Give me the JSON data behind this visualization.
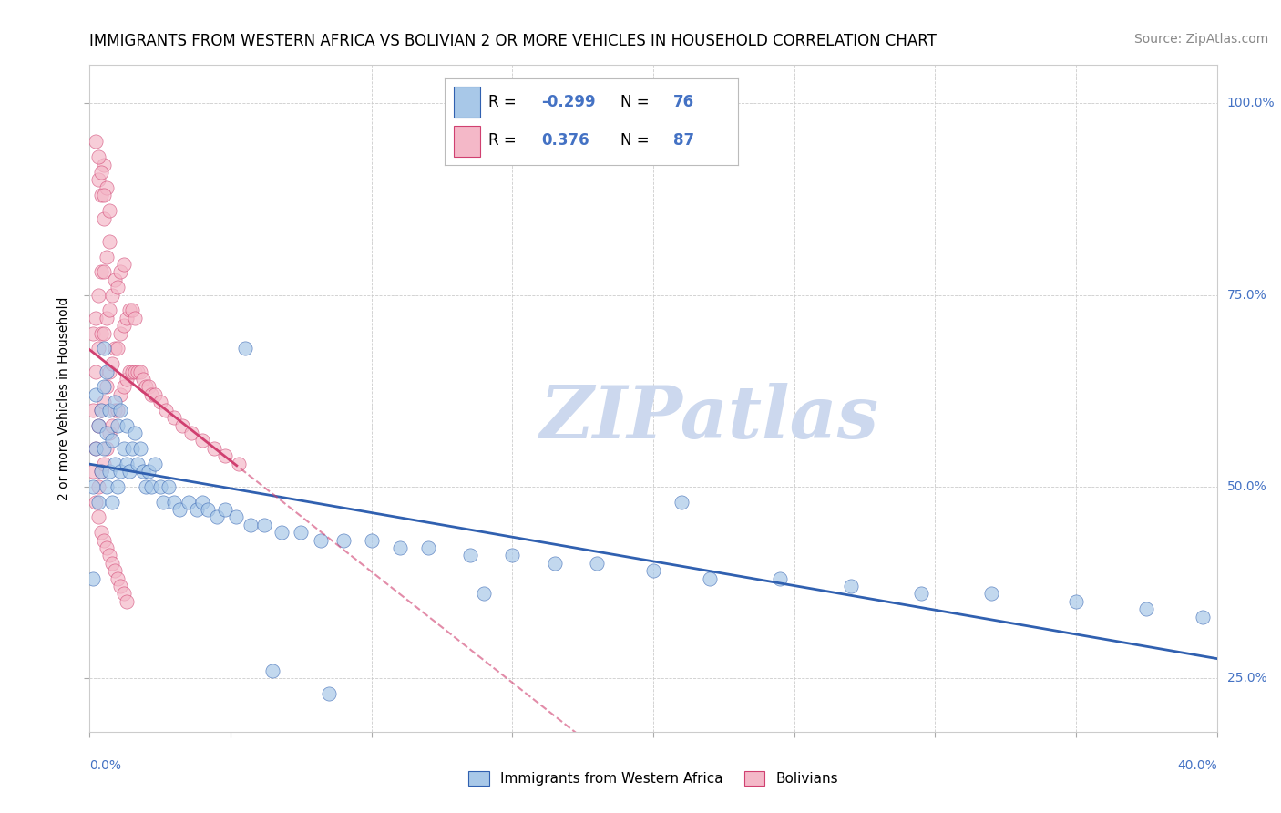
{
  "title": "IMMIGRANTS FROM WESTERN AFRICA VS BOLIVIAN 2 OR MORE VEHICLES IN HOUSEHOLD CORRELATION CHART",
  "source": "Source: ZipAtlas.com",
  "ylabel_label": "2 or more Vehicles in Household",
  "legend_blue_label": "Immigrants from Western Africa",
  "legend_pink_label": "Bolivians",
  "R_blue": -0.299,
  "N_blue": 76,
  "R_pink": 0.376,
  "N_pink": 87,
  "blue_color": "#a8c8e8",
  "pink_color": "#f4b8c8",
  "blue_line_color": "#3060b0",
  "pink_line_color": "#d04070",
  "watermark": "ZIPatlas",
  "watermark_color": "#ccd8ee",
  "title_fontsize": 12,
  "source_fontsize": 10,
  "xmin": 0.0,
  "xmax": 0.4,
  "ymin": 0.18,
  "ymax": 1.05,
  "blue_scatter_x": [
    0.001,
    0.001,
    0.002,
    0.002,
    0.003,
    0.003,
    0.004,
    0.004,
    0.005,
    0.005,
    0.005,
    0.006,
    0.006,
    0.006,
    0.007,
    0.007,
    0.008,
    0.008,
    0.009,
    0.009,
    0.01,
    0.01,
    0.011,
    0.011,
    0.012,
    0.013,
    0.013,
    0.014,
    0.015,
    0.016,
    0.017,
    0.018,
    0.019,
    0.02,
    0.021,
    0.022,
    0.023,
    0.025,
    0.026,
    0.028,
    0.03,
    0.032,
    0.035,
    0.038,
    0.04,
    0.042,
    0.045,
    0.048,
    0.052,
    0.057,
    0.062,
    0.068,
    0.075,
    0.082,
    0.09,
    0.1,
    0.11,
    0.12,
    0.135,
    0.15,
    0.165,
    0.18,
    0.2,
    0.22,
    0.245,
    0.27,
    0.295,
    0.32,
    0.35,
    0.375,
    0.055,
    0.21,
    0.14,
    0.065,
    0.085,
    0.395
  ],
  "blue_scatter_y": [
    0.38,
    0.5,
    0.55,
    0.62,
    0.48,
    0.58,
    0.52,
    0.6,
    0.55,
    0.63,
    0.68,
    0.5,
    0.57,
    0.65,
    0.52,
    0.6,
    0.48,
    0.56,
    0.53,
    0.61,
    0.5,
    0.58,
    0.52,
    0.6,
    0.55,
    0.53,
    0.58,
    0.52,
    0.55,
    0.57,
    0.53,
    0.55,
    0.52,
    0.5,
    0.52,
    0.5,
    0.53,
    0.5,
    0.48,
    0.5,
    0.48,
    0.47,
    0.48,
    0.47,
    0.48,
    0.47,
    0.46,
    0.47,
    0.46,
    0.45,
    0.45,
    0.44,
    0.44,
    0.43,
    0.43,
    0.43,
    0.42,
    0.42,
    0.41,
    0.41,
    0.4,
    0.4,
    0.39,
    0.38,
    0.38,
    0.37,
    0.36,
    0.36,
    0.35,
    0.34,
    0.68,
    0.48,
    0.36,
    0.26,
    0.23,
    0.33
  ],
  "pink_scatter_x": [
    0.001,
    0.001,
    0.001,
    0.002,
    0.002,
    0.002,
    0.003,
    0.003,
    0.003,
    0.003,
    0.004,
    0.004,
    0.004,
    0.004,
    0.005,
    0.005,
    0.005,
    0.005,
    0.005,
    0.006,
    0.006,
    0.006,
    0.006,
    0.007,
    0.007,
    0.007,
    0.007,
    0.008,
    0.008,
    0.008,
    0.009,
    0.009,
    0.009,
    0.01,
    0.01,
    0.01,
    0.011,
    0.011,
    0.011,
    0.012,
    0.012,
    0.012,
    0.013,
    0.013,
    0.014,
    0.014,
    0.015,
    0.015,
    0.016,
    0.016,
    0.017,
    0.018,
    0.019,
    0.02,
    0.021,
    0.022,
    0.023,
    0.025,
    0.027,
    0.03,
    0.033,
    0.036,
    0.04,
    0.044,
    0.048,
    0.053,
    0.002,
    0.003,
    0.004,
    0.005,
    0.006,
    0.007,
    0.008,
    0.009,
    0.01,
    0.011,
    0.012,
    0.013,
    0.003,
    0.004,
    0.005,
    0.006,
    0.007,
    0.002,
    0.003,
    0.004,
    0.005
  ],
  "pink_scatter_y": [
    0.52,
    0.6,
    0.7,
    0.55,
    0.65,
    0.72,
    0.5,
    0.58,
    0.68,
    0.75,
    0.52,
    0.6,
    0.7,
    0.78,
    0.53,
    0.61,
    0.7,
    0.78,
    0.85,
    0.55,
    0.63,
    0.72,
    0.8,
    0.57,
    0.65,
    0.73,
    0.82,
    0.58,
    0.66,
    0.75,
    0.6,
    0.68,
    0.77,
    0.6,
    0.68,
    0.76,
    0.62,
    0.7,
    0.78,
    0.63,
    0.71,
    0.79,
    0.64,
    0.72,
    0.65,
    0.73,
    0.65,
    0.73,
    0.65,
    0.72,
    0.65,
    0.65,
    0.64,
    0.63,
    0.63,
    0.62,
    0.62,
    0.61,
    0.6,
    0.59,
    0.58,
    0.57,
    0.56,
    0.55,
    0.54,
    0.53,
    0.48,
    0.46,
    0.44,
    0.43,
    0.42,
    0.41,
    0.4,
    0.39,
    0.38,
    0.37,
    0.36,
    0.35,
    0.9,
    0.88,
    0.92,
    0.89,
    0.86,
    0.95,
    0.93,
    0.91,
    0.88
  ]
}
